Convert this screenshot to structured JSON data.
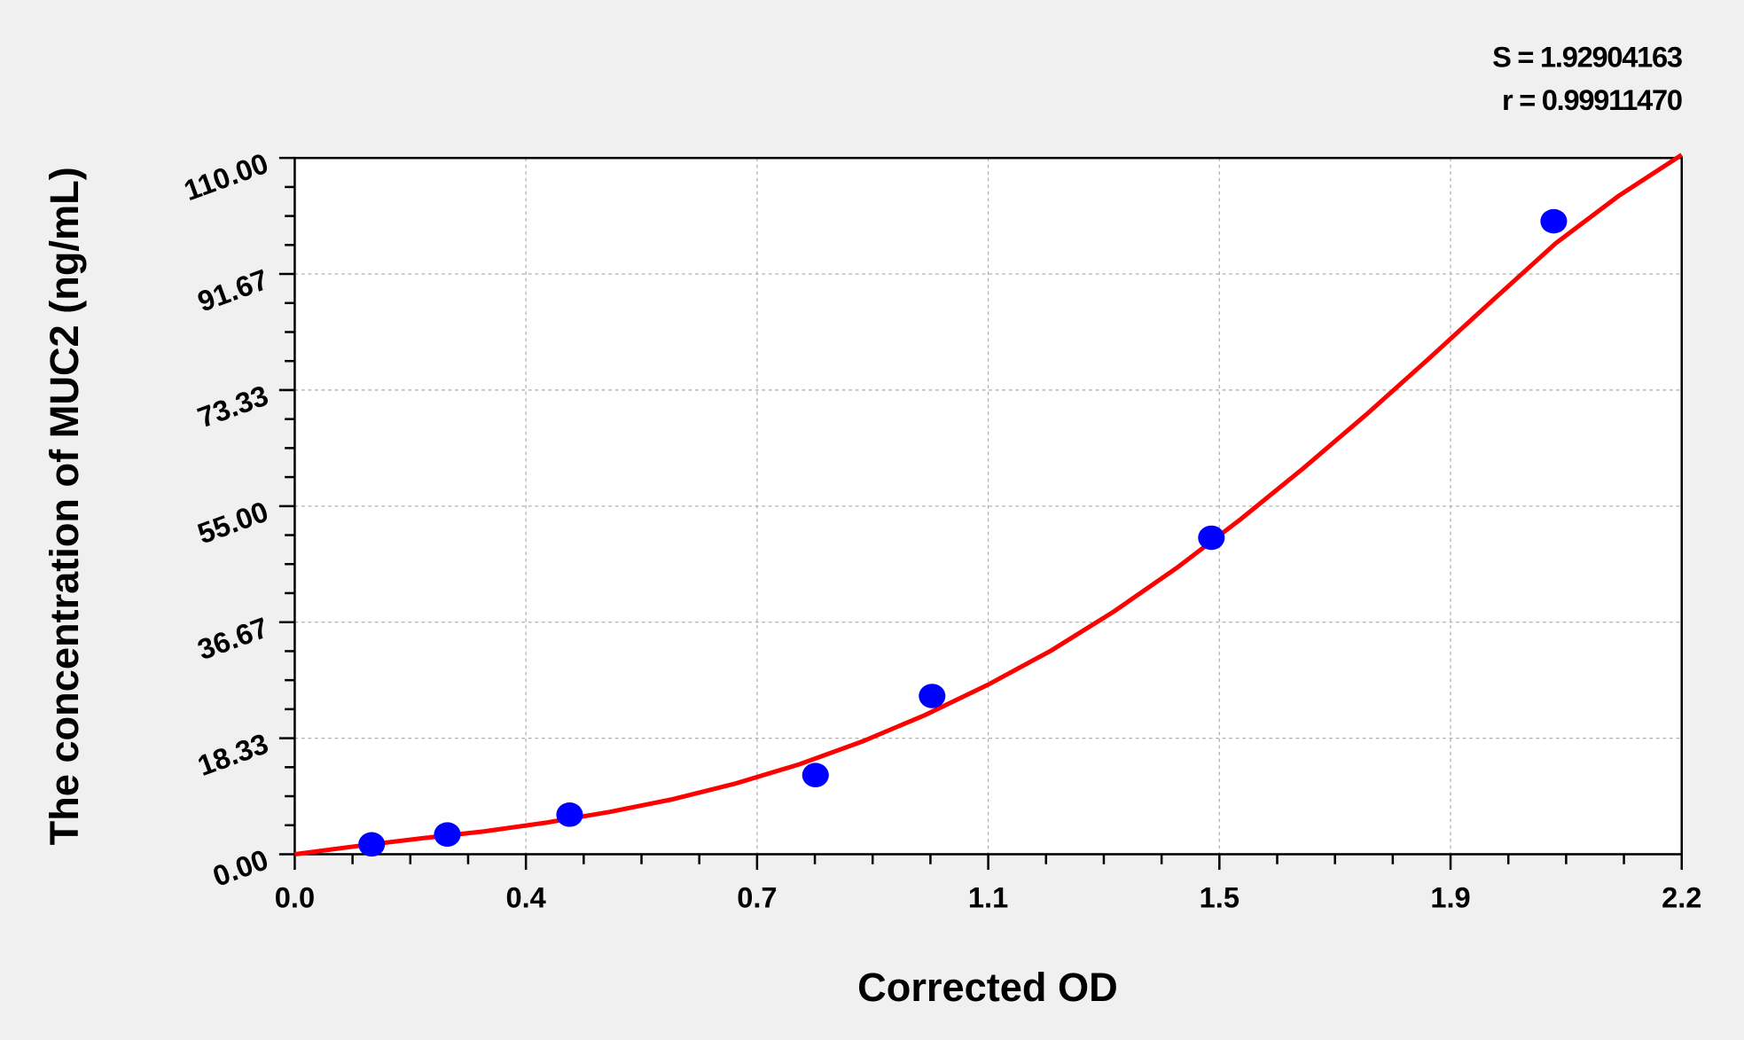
{
  "chart_data": {
    "type": "scatter",
    "title": "",
    "xlabel": "Corrected OD",
    "ylabel": "The concentration of MUC2 (ng/mL)",
    "xlim": [
      0,
      2.2
    ],
    "ylim": [
      0,
      110
    ],
    "x_tick_labels": [
      "0.0",
      "0.4",
      "0.7",
      "1.1",
      "1.5",
      "1.9",
      "2.2"
    ],
    "y_tick_labels": [
      "0.00",
      "18.33",
      "36.67",
      "55.00",
      "73.33",
      "91.67",
      "110.00"
    ],
    "grid": true,
    "annotations": [
      "S = 1.92904163",
      "r = 0.99911470"
    ],
    "points": {
      "x": [
        0.122,
        0.242,
        0.436,
        0.826,
        1.011,
        1.454,
        1.997
      ],
      "y": [
        1.56,
        3.12,
        6.25,
        12.5,
        25,
        50,
        100
      ],
      "color": "#0000ff"
    },
    "fit_curve": {
      "color": "#ff0000",
      "x": [
        0,
        0.1,
        0.2,
        0.3,
        0.4,
        0.5,
        0.6,
        0.7,
        0.8,
        0.9,
        1.0,
        1.1,
        1.2,
        1.3,
        1.4,
        1.5,
        1.6,
        1.7,
        1.8,
        1.9,
        2.0,
        2.1,
        2.2
      ],
      "y": [
        0,
        1.3,
        2.5,
        3.6,
        5.0,
        6.7,
        8.7,
        11.2,
        14.2,
        17.8,
        22.0,
        26.8,
        32.2,
        38.4,
        45.3,
        52.9,
        61.0,
        69.5,
        78.4,
        87.5,
        96.5,
        104.0,
        110.5
      ]
    }
  }
}
